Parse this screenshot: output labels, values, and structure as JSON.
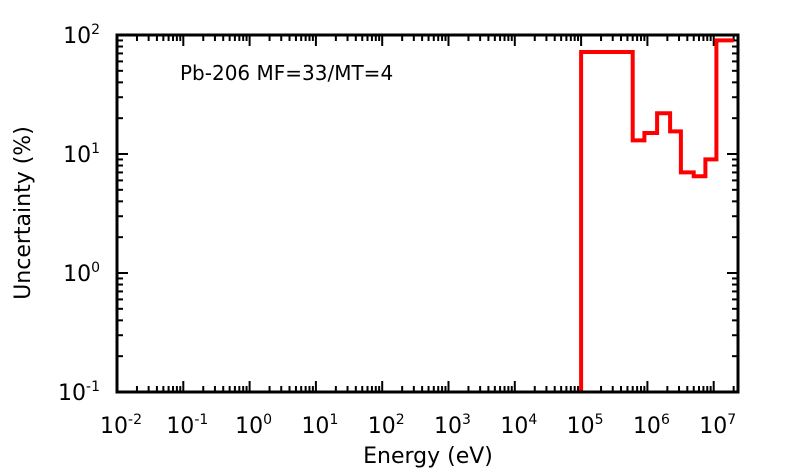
{
  "chart_data": {
    "type": "line",
    "title": "",
    "annotation": "Pb-206 MF=33/MT=4",
    "xlabel": "Energy (eV)",
    "ylabel": "Uncertainty (%)",
    "xscale": "log",
    "yscale": "log",
    "xlim": [
      0.01,
      20000000
    ],
    "ylim": [
      0.1,
      100
    ],
    "x_tick_labels": [
      {
        "base": "10",
        "exp": "-2",
        "value": 0.01
      },
      {
        "base": "10",
        "exp": "-1",
        "value": 0.1
      },
      {
        "base": "10",
        "exp": "0",
        "value": 1
      },
      {
        "base": "10",
        "exp": "1",
        "value": 10
      },
      {
        "base": "10",
        "exp": "2",
        "value": 100
      },
      {
        "base": "10",
        "exp": "3",
        "value": 1000
      },
      {
        "base": "10",
        "exp": "4",
        "value": 10000
      },
      {
        "base": "10",
        "exp": "5",
        "value": 100000
      },
      {
        "base": "10",
        "exp": "6",
        "value": 1000000
      },
      {
        "base": "10",
        "exp": "7",
        "value": 10000000
      }
    ],
    "y_tick_labels": [
      {
        "base": "10",
        "exp": "-1",
        "value": 0.1
      },
      {
        "base": "10",
        "exp": "0",
        "value": 1
      },
      {
        "base": "10",
        "exp": "1",
        "value": 10
      },
      {
        "base": "10",
        "exp": "2",
        "value": 100
      }
    ],
    "series": [
      {
        "style": "step",
        "color": "#ff0000",
        "points": [
          {
            "x": 100000,
            "y": 0.1
          },
          {
            "x": 100000,
            "y": 72
          },
          {
            "x": 600000,
            "y": 72
          },
          {
            "x": 600000,
            "y": 13
          },
          {
            "x": 900000,
            "y": 13
          },
          {
            "x": 900000,
            "y": 15
          },
          {
            "x": 1400000,
            "y": 15
          },
          {
            "x": 1400000,
            "y": 22
          },
          {
            "x": 2200000,
            "y": 22
          },
          {
            "x": 2200000,
            "y": 15.5
          },
          {
            "x": 3200000,
            "y": 15.5
          },
          {
            "x": 3200000,
            "y": 7
          },
          {
            "x": 5000000,
            "y": 7
          },
          {
            "x": 5000000,
            "y": 6.5
          },
          {
            "x": 7500000,
            "y": 6.5
          },
          {
            "x": 7500000,
            "y": 9
          },
          {
            "x": 11000000,
            "y": 9
          },
          {
            "x": 11000000,
            "y": 90
          },
          {
            "x": 20000000,
            "y": 90
          }
        ]
      }
    ],
    "grid": false,
    "legend": "none"
  }
}
